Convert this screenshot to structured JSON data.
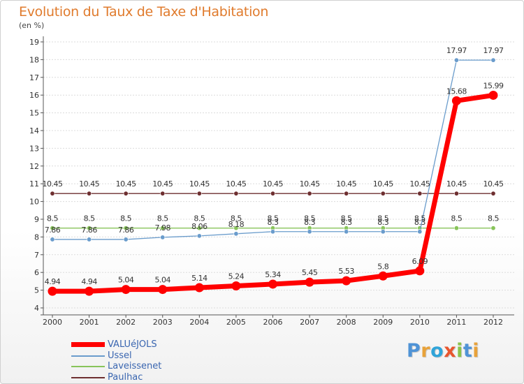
{
  "chart_data": {
    "type": "line",
    "title": "Evolution du Taux de Taxe d'Habitation",
    "ylabel": "(en %)",
    "xlabel": "",
    "categories": [
      "2000",
      "2001",
      "2002",
      "2003",
      "2004",
      "2005",
      "2006",
      "2007",
      "2008",
      "2009",
      "2010",
      "2011",
      "2012"
    ],
    "ylim": [
      4,
      19
    ],
    "yticks": [
      "4",
      "5",
      "6",
      "7",
      "8",
      "9",
      "10",
      "11",
      "12",
      "13",
      "14",
      "15",
      "16",
      "17",
      "18",
      "19"
    ],
    "series": [
      {
        "name": "Paulhac",
        "color": "#6e2f30",
        "values": [
          10.45,
          10.45,
          10.45,
          10.45,
          10.45,
          10.45,
          10.45,
          10.45,
          10.45,
          10.45,
          10.45,
          10.45,
          10.45
        ],
        "labels": [
          "10.45",
          "10.45",
          "10.45",
          "10.45",
          "10.45",
          "10.45",
          "10.45",
          "10.45",
          "10.45",
          "10.45",
          "10.45",
          "10.45",
          "10.45"
        ]
      },
      {
        "name": "Laveissenet",
        "color": "#88c45a",
        "values": [
          8.5,
          8.5,
          8.5,
          8.5,
          8.5,
          8.5,
          8.5,
          8.5,
          8.5,
          8.5,
          8.5,
          8.5,
          8.5
        ],
        "labels": [
          "8.5",
          "8.5",
          "8.5",
          "8.5",
          "8.5",
          "8.5",
          "8.5",
          "8.5",
          "8.5",
          "8.5",
          "8.5",
          "8.5",
          "8.5"
        ]
      },
      {
        "name": "Ussel",
        "color": "#6a9ccc",
        "values": [
          7.86,
          7.86,
          7.86,
          7.98,
          8.06,
          8.18,
          8.3,
          8.3,
          8.3,
          8.3,
          8.3,
          17.97,
          17.97
        ],
        "labels": [
          "7.86",
          "7.86",
          "7.86",
          "7.98",
          "8.06",
          "8.18",
          "8.3",
          "8.3",
          "8.3",
          "8.3",
          "8.3",
          "17.97",
          "17.97"
        ]
      },
      {
        "name": "VALUéJOLS",
        "color": "#ff0000",
        "values": [
          4.94,
          4.94,
          5.04,
          5.04,
          5.14,
          5.24,
          5.34,
          5.45,
          5.53,
          5.8,
          6.09,
          15.68,
          15.99
        ],
        "labels": [
          "4.94",
          "4.94",
          "5.04",
          "5.04",
          "5.14",
          "5.24",
          "5.34",
          "5.45",
          "5.53",
          "5.8",
          "6.09",
          "15.68",
          "15.99"
        ]
      }
    ],
    "legend": {
      "placement": "bottom-left",
      "items": [
        {
          "name": "VALUéJOLS",
          "color": "#ff0000"
        },
        {
          "name": "Ussel",
          "color": "#6a9ccc"
        },
        {
          "name": "Laveissenet",
          "color": "#88c45a"
        },
        {
          "name": "Paulhac",
          "color": "#6e2f30"
        }
      ]
    }
  },
  "brand": {
    "text": "Proxiti"
  }
}
